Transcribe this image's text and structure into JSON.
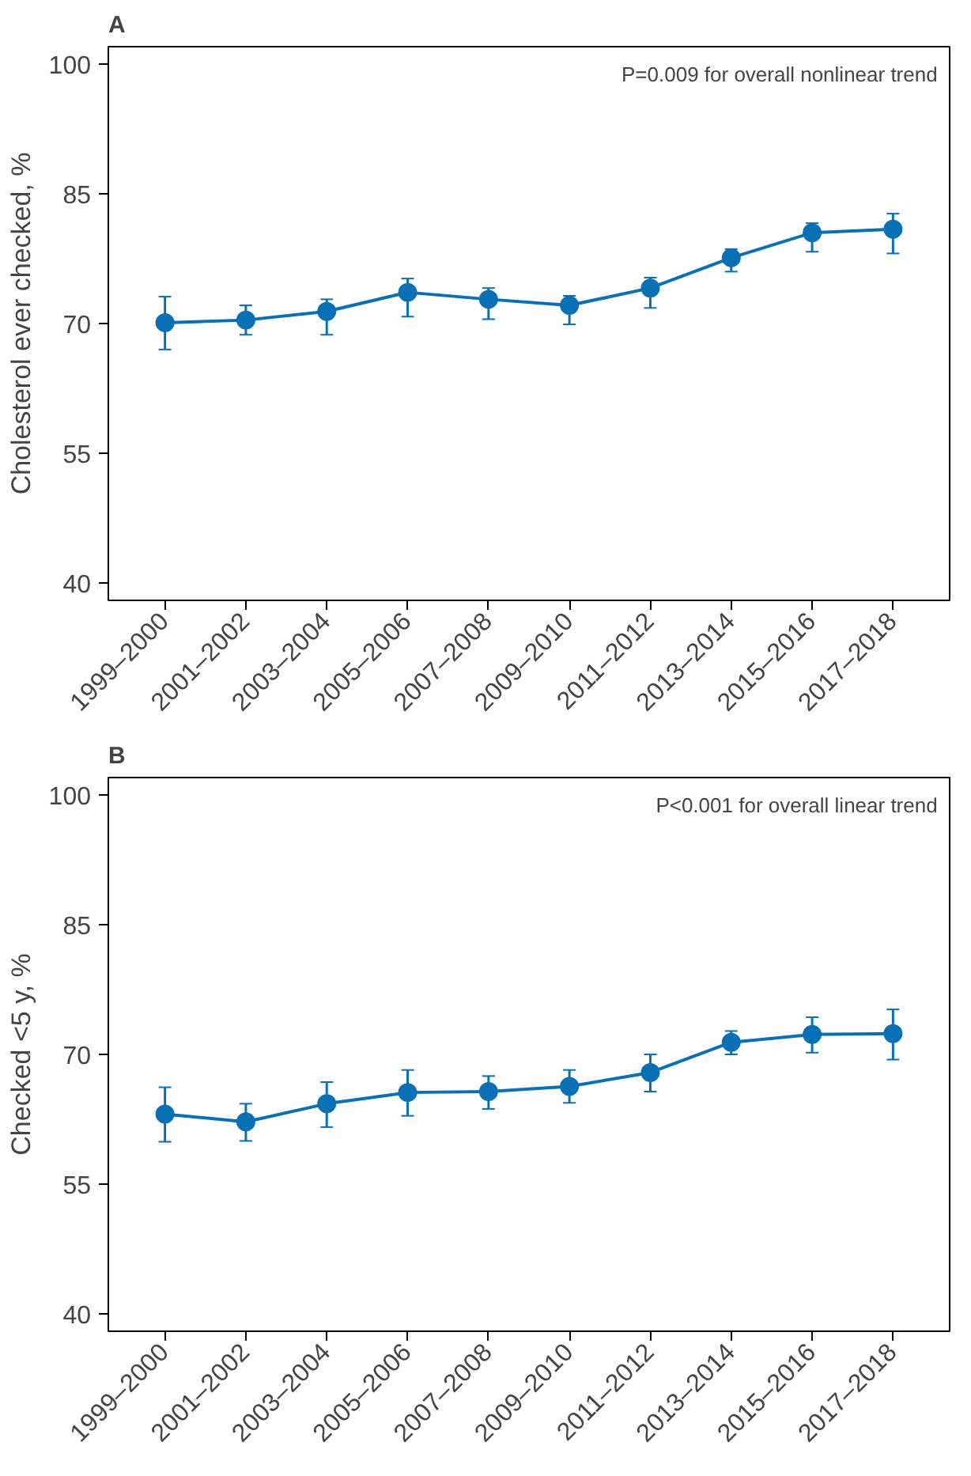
{
  "chart_data": [
    {
      "type": "line",
      "title": "A",
      "ylabel": "Cholesterol ever checked, %",
      "categories": [
        "1999–2000",
        "2001–2002",
        "2003–2004",
        "2005–2006",
        "2007–2008",
        "2009–2010",
        "2011–2012",
        "2013–2014",
        "2015–2016",
        "2017–2018"
      ],
      "series": [
        {
          "color": "#0a70b5",
          "values": [
            70.1,
            70.4,
            71.4,
            73.6,
            72.8,
            72.1,
            74.1,
            77.6,
            80.5,
            80.9
          ],
          "errors": [
            [
              67.0,
              73.1
            ],
            [
              68.7,
              72.1
            ],
            [
              68.7,
              72.8
            ],
            [
              70.8,
              75.2
            ],
            [
              70.5,
              74.1
            ],
            [
              69.9,
              73.2
            ],
            [
              71.8,
              75.3
            ],
            [
              76.0,
              78.6
            ],
            [
              78.3,
              81.6
            ],
            [
              78.1,
              82.7
            ]
          ]
        }
      ],
      "ylim": [
        38,
        102
      ],
      "yticks": [
        40,
        55,
        70,
        85,
        100
      ],
      "marker": "circle",
      "grid": false,
      "annotations": [
        "P=0.009 for overall nonlinear trend"
      ]
    },
    {
      "type": "line",
      "title": "B",
      "ylabel": "Checked <5 y, %",
      "categories": [
        "1999–2000",
        "2001–2002",
        "2003–2004",
        "2005–2006",
        "2007–2008",
        "2009–2010",
        "2011–2012",
        "2013–2014",
        "2015–2016",
        "2017–2018"
      ],
      "series": [
        {
          "color": "#0a70b5",
          "values": [
            63.1,
            62.2,
            64.3,
            65.6,
            65.7,
            66.3,
            67.9,
            71.4,
            72.3,
            72.4
          ],
          "errors": [
            [
              59.9,
              66.2
            ],
            [
              60.0,
              64.3
            ],
            [
              61.6,
              66.8
            ],
            [
              62.9,
              68.2
            ],
            [
              63.7,
              67.5
            ],
            [
              64.4,
              68.2
            ],
            [
              65.7,
              70.0
            ],
            [
              70.0,
              72.7
            ],
            [
              70.2,
              74.3
            ],
            [
              69.4,
              75.2
            ]
          ]
        }
      ],
      "ylim": [
        38,
        102
      ],
      "yticks": [
        40,
        55,
        70,
        85,
        100
      ],
      "marker": "circle",
      "grid": false,
      "annotations": [
        "P<0.001 for overall linear trend"
      ]
    }
  ]
}
